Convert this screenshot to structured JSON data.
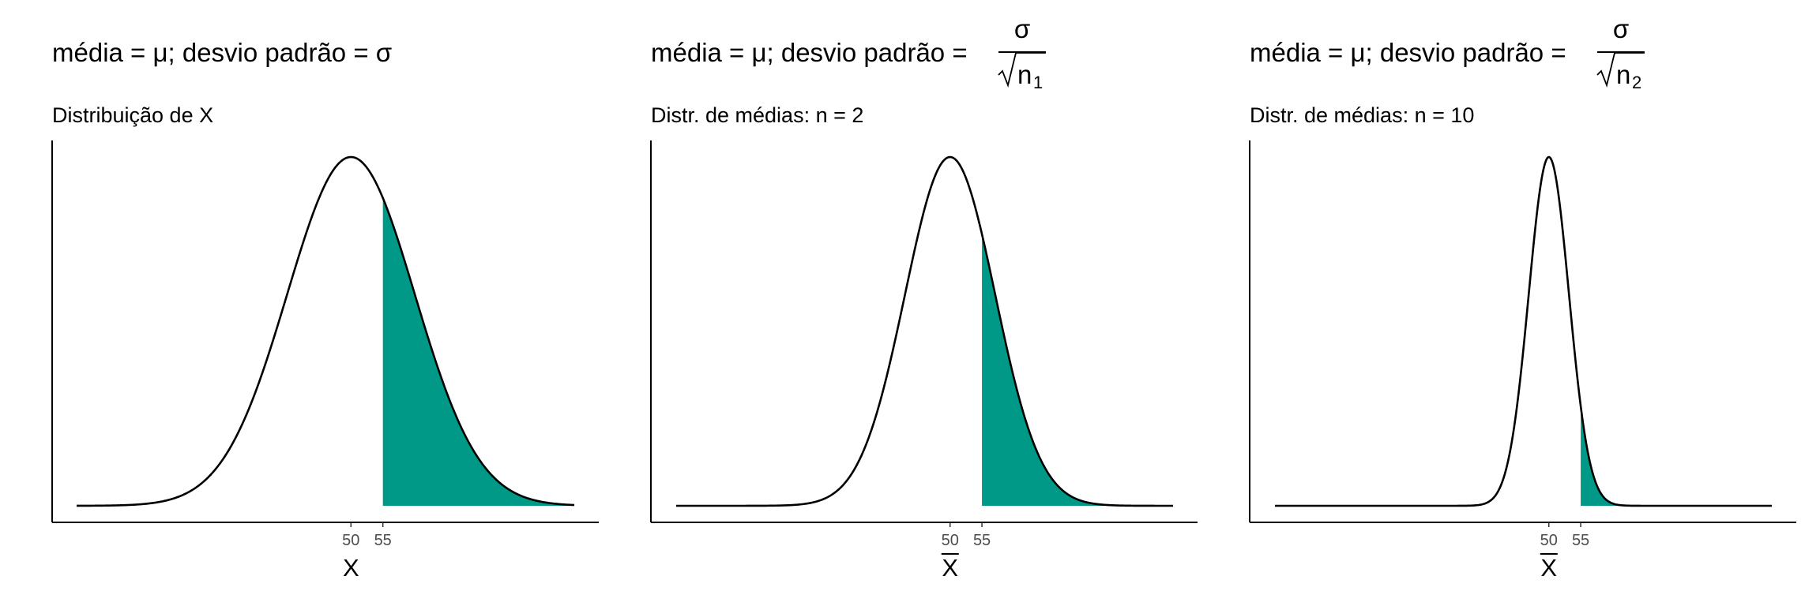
{
  "panels": [
    {
      "title": "média = μ; desvio padrão = σ",
      "title_fraction": null,
      "subtitle": "Distribuição de X",
      "xlabel": "X",
      "xlabel_overline": false
    },
    {
      "title": "média = μ; desvio padrão = ",
      "title_fraction": {
        "numerator": "σ",
        "denominator": "n",
        "subscript": "1"
      },
      "subtitle": "Distr. de médias: n = 2",
      "xlabel": "X",
      "xlabel_overline": true
    },
    {
      "title": "média = μ; desvio padrão = ",
      "title_fraction": {
        "numerator": "σ",
        "denominator": "n",
        "subscript": "2"
      },
      "subtitle": "Distr. de médias: n = 10",
      "xlabel": "X",
      "xlabel_overline": true
    }
  ],
  "chart_data": [
    {
      "type": "area",
      "title": "média = μ; desvio padrão = σ",
      "subtitle": "Distribuição de X",
      "xlabel": "X",
      "ylabel": "",
      "distribution": "normal",
      "mean": 50,
      "sd": 10,
      "xlim": [
        7,
        85
      ],
      "xticks": [
        50,
        55
      ],
      "shade_from": 55,
      "fill_color": "#009988",
      "line_color": "#000000"
    },
    {
      "type": "area",
      "title": "média = μ; desvio padrão = σ/√n1",
      "subtitle": "Distr. de médias: n = 2",
      "xlabel": "X̄",
      "ylabel": "",
      "distribution": "normal",
      "mean": 50,
      "sd": 7.07,
      "xlim": [
        7,
        85
      ],
      "xticks": [
        50,
        55
      ],
      "shade_from": 55,
      "fill_color": "#009988",
      "line_color": "#000000"
    },
    {
      "type": "area",
      "title": "média = μ; desvio padrão = σ/√n2",
      "subtitle": "Distr. de médias: n = 10",
      "xlabel": "X̄",
      "ylabel": "",
      "distribution": "normal",
      "mean": 50,
      "sd": 3.16,
      "xlim": [
        7,
        85
      ],
      "xticks": [
        50,
        55
      ],
      "shade_from": 55,
      "fill_color": "#009988",
      "line_color": "#000000"
    }
  ]
}
